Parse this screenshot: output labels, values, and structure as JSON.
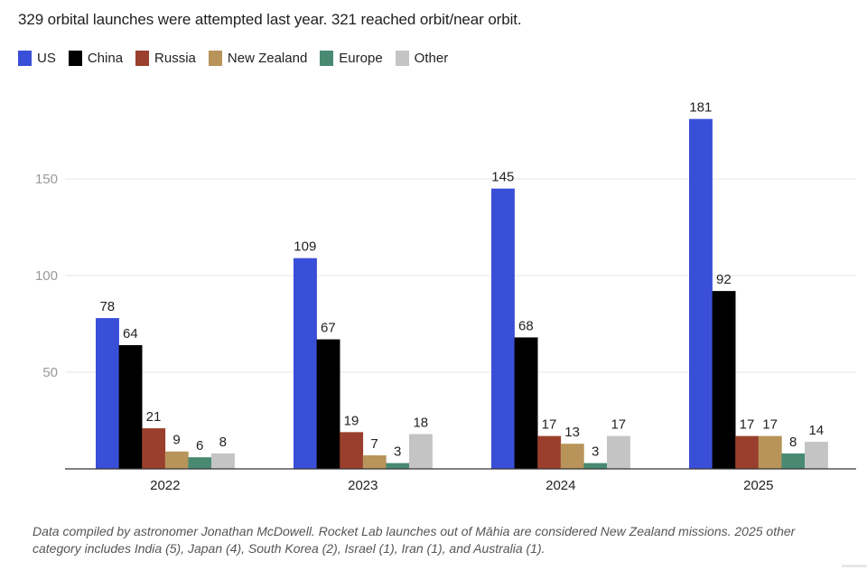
{
  "title": "329 orbital launches were attempted last year. 321 reached orbit/near orbit.",
  "footnote": "Data compiled by astronomer Jonathan McDowell. Rocket Lab launches out of Māhia are considered New Zealand missions. 2025 other category includes India (5), Japan (4), South Korea (2), Israel (1), Iran (1), and Australia (1).",
  "chart_data": {
    "type": "bar",
    "title": "329 orbital launches were attempted last year. 321 reached orbit/near orbit.",
    "xlabel": "",
    "ylabel": "",
    "categories": [
      "2022",
      "2023",
      "2024",
      "2025"
    ],
    "series": [
      {
        "name": "US",
        "color": "#3a4fd8",
        "values": [
          78,
          109,
          145,
          181
        ]
      },
      {
        "name": "China",
        "color": "#000000",
        "values": [
          64,
          67,
          68,
          92
        ]
      },
      {
        "name": "Russia",
        "color": "#9a3f2d",
        "values": [
          21,
          19,
          17,
          17
        ]
      },
      {
        "name": "New Zealand",
        "color": "#b8945a",
        "values": [
          9,
          7,
          13,
          17
        ]
      },
      {
        "name": "Europe",
        "color": "#4a8a72",
        "values": [
          6,
          3,
          3,
          8
        ]
      },
      {
        "name": "Other",
        "color": "#c4c4c4",
        "values": [
          8,
          18,
          17,
          14
        ]
      }
    ],
    "yticks": [
      50,
      100,
      150
    ],
    "ylim": [
      0,
      190
    ],
    "grid": true,
    "legend_position": "top-left",
    "data_labels": true
  }
}
